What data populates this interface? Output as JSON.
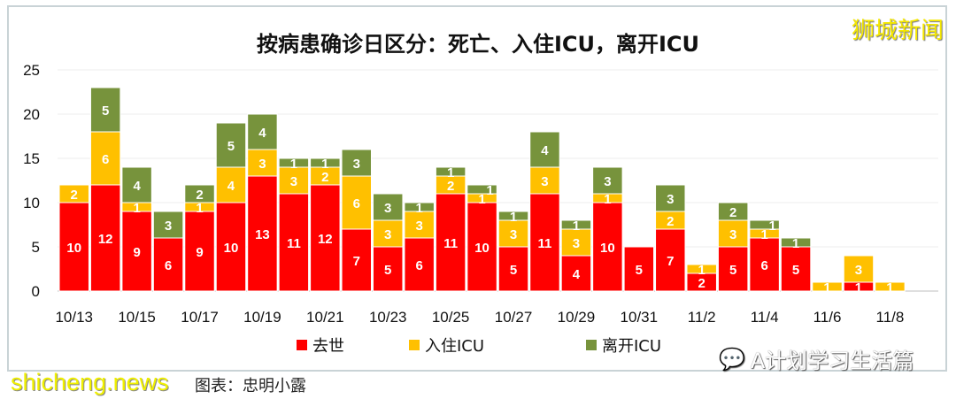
{
  "chart_data": {
    "type": "bar",
    "stacked": true,
    "title": "按病患确诊日区分：死亡、入住ICU，离开ICU",
    "categories": [
      "10/13",
      "10/14",
      "10/15",
      "10/16",
      "10/17",
      "10/18",
      "10/19",
      "10/20",
      "10/21",
      "10/22",
      "10/23",
      "10/24",
      "10/25",
      "10/26",
      "10/27",
      "10/28",
      "10/29",
      "10/30",
      "10/31",
      "11/1",
      "11/2",
      "11/3",
      "11/4",
      "11/5",
      "11/6",
      "11/7",
      "11/8"
    ],
    "tick_labels": [
      "10/13",
      "10/15",
      "10/17",
      "10/19",
      "10/21",
      "10/23",
      "10/25",
      "10/27",
      "10/29",
      "10/31",
      "11/2",
      "11/4",
      "11/6",
      "11/8"
    ],
    "series": [
      {
        "name": "去世",
        "color": "#ff0000",
        "values": [
          10,
          12,
          9,
          6,
          9,
          10,
          13,
          11,
          12,
          7,
          5,
          6,
          11,
          10,
          5,
          11,
          4,
          10,
          5,
          7,
          2,
          5,
          6,
          5,
          0,
          1,
          0
        ]
      },
      {
        "name": "入住ICU",
        "color": "#ffc000",
        "values": [
          2,
          6,
          1,
          0,
          1,
          4,
          3,
          3,
          2,
          6,
          3,
          3,
          2,
          1,
          3,
          3,
          3,
          1,
          0,
          2,
          1,
          3,
          1,
          0,
          1,
          3,
          1
        ]
      },
      {
        "name": "离开ICU",
        "color": "#77933c",
        "values": [
          0,
          5,
          4,
          3,
          2,
          5,
          4,
          1,
          1,
          3,
          3,
          1,
          1,
          1,
          1,
          4,
          1,
          3,
          0,
          3,
          0,
          2,
          1,
          1,
          0,
          0,
          0
        ]
      }
    ],
    "ylim": [
      0,
      25
    ],
    "yticks": [
      0,
      5,
      10,
      15,
      20,
      25
    ],
    "grid": true,
    "legend": "bottom"
  },
  "watermarks": {
    "top": "狮城新闻",
    "site": "shicheng.news",
    "wechat": "A计划学习生活篇"
  },
  "caption": "图表：忠明小露"
}
